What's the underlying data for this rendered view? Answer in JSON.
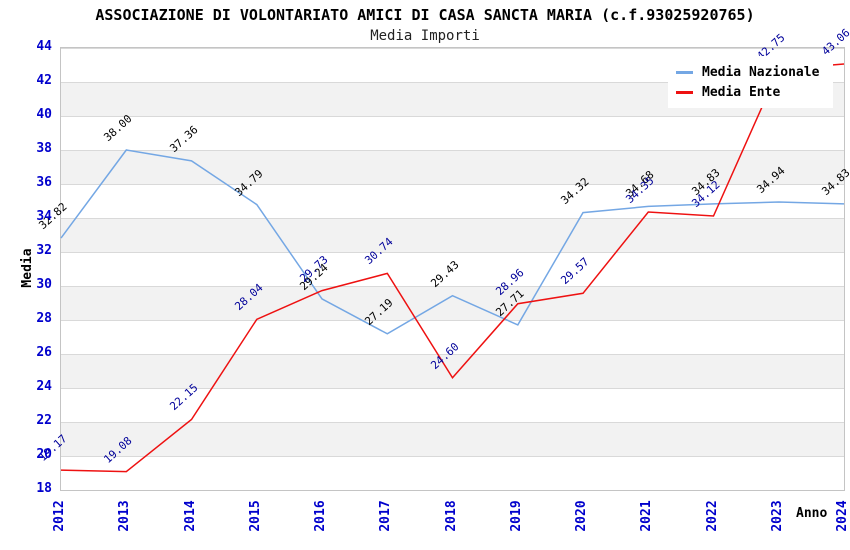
{
  "header": {
    "title": "ASSOCIAZIONE DI VOLONTARIATO AMICI DI CASA SANCTA MARIA (c.f.93025920765)",
    "subtitle": "Media Importi"
  },
  "legend": {
    "position": "top-right",
    "items": [
      {
        "label": "Media Nazionale"
      },
      {
        "label": "Media Ente"
      }
    ]
  },
  "colors": {
    "tick_label": "#0000cc",
    "band_gray": "#f2f2f2",
    "gridline": "#d9d9d9",
    "frame_border": "#c4c4c4",
    "nazionale_line": "#74a7e4",
    "ente_line": "#ee1111",
    "nazionale_point_label": "#000000",
    "ente_point_label": "#00009a"
  },
  "chart_data": {
    "type": "line",
    "title": "ASSOCIAZIONE DI VOLONTARIATO AMICI DI CASA SANCTA MARIA (c.f.93025920765)",
    "subtitle": "Media Importi",
    "xlabel": "Anno",
    "ylabel": "Media",
    "x": [
      2012,
      2013,
      2014,
      2015,
      2016,
      2017,
      2018,
      2019,
      2020,
      2021,
      2022,
      2023,
      2024
    ],
    "ylim": [
      18,
      44
    ],
    "yticks": [
      44,
      42,
      40,
      38,
      36,
      34,
      32,
      30,
      28,
      26,
      24,
      22,
      20,
      18
    ],
    "grid": "horizontal gridlines every 2 units with alternating gray/white bands",
    "legend_position": "top-right",
    "series": [
      {
        "name": "Media Nazionale",
        "color": "#74a7e4",
        "label_color": "#000000",
        "values": [
          32.82,
          38.0,
          37.36,
          34.79,
          29.24,
          27.19,
          29.43,
          27.71,
          34.32,
          34.68,
          34.83,
          34.94,
          34.83
        ]
      },
      {
        "name": "Media Ente",
        "color": "#ee1111",
        "label_color": "#00009a",
        "values": [
          19.17,
          19.08,
          22.15,
          28.04,
          29.73,
          30.74,
          24.6,
          28.96,
          29.57,
          34.35,
          34.12,
          42.75,
          43.06
        ]
      }
    ]
  }
}
